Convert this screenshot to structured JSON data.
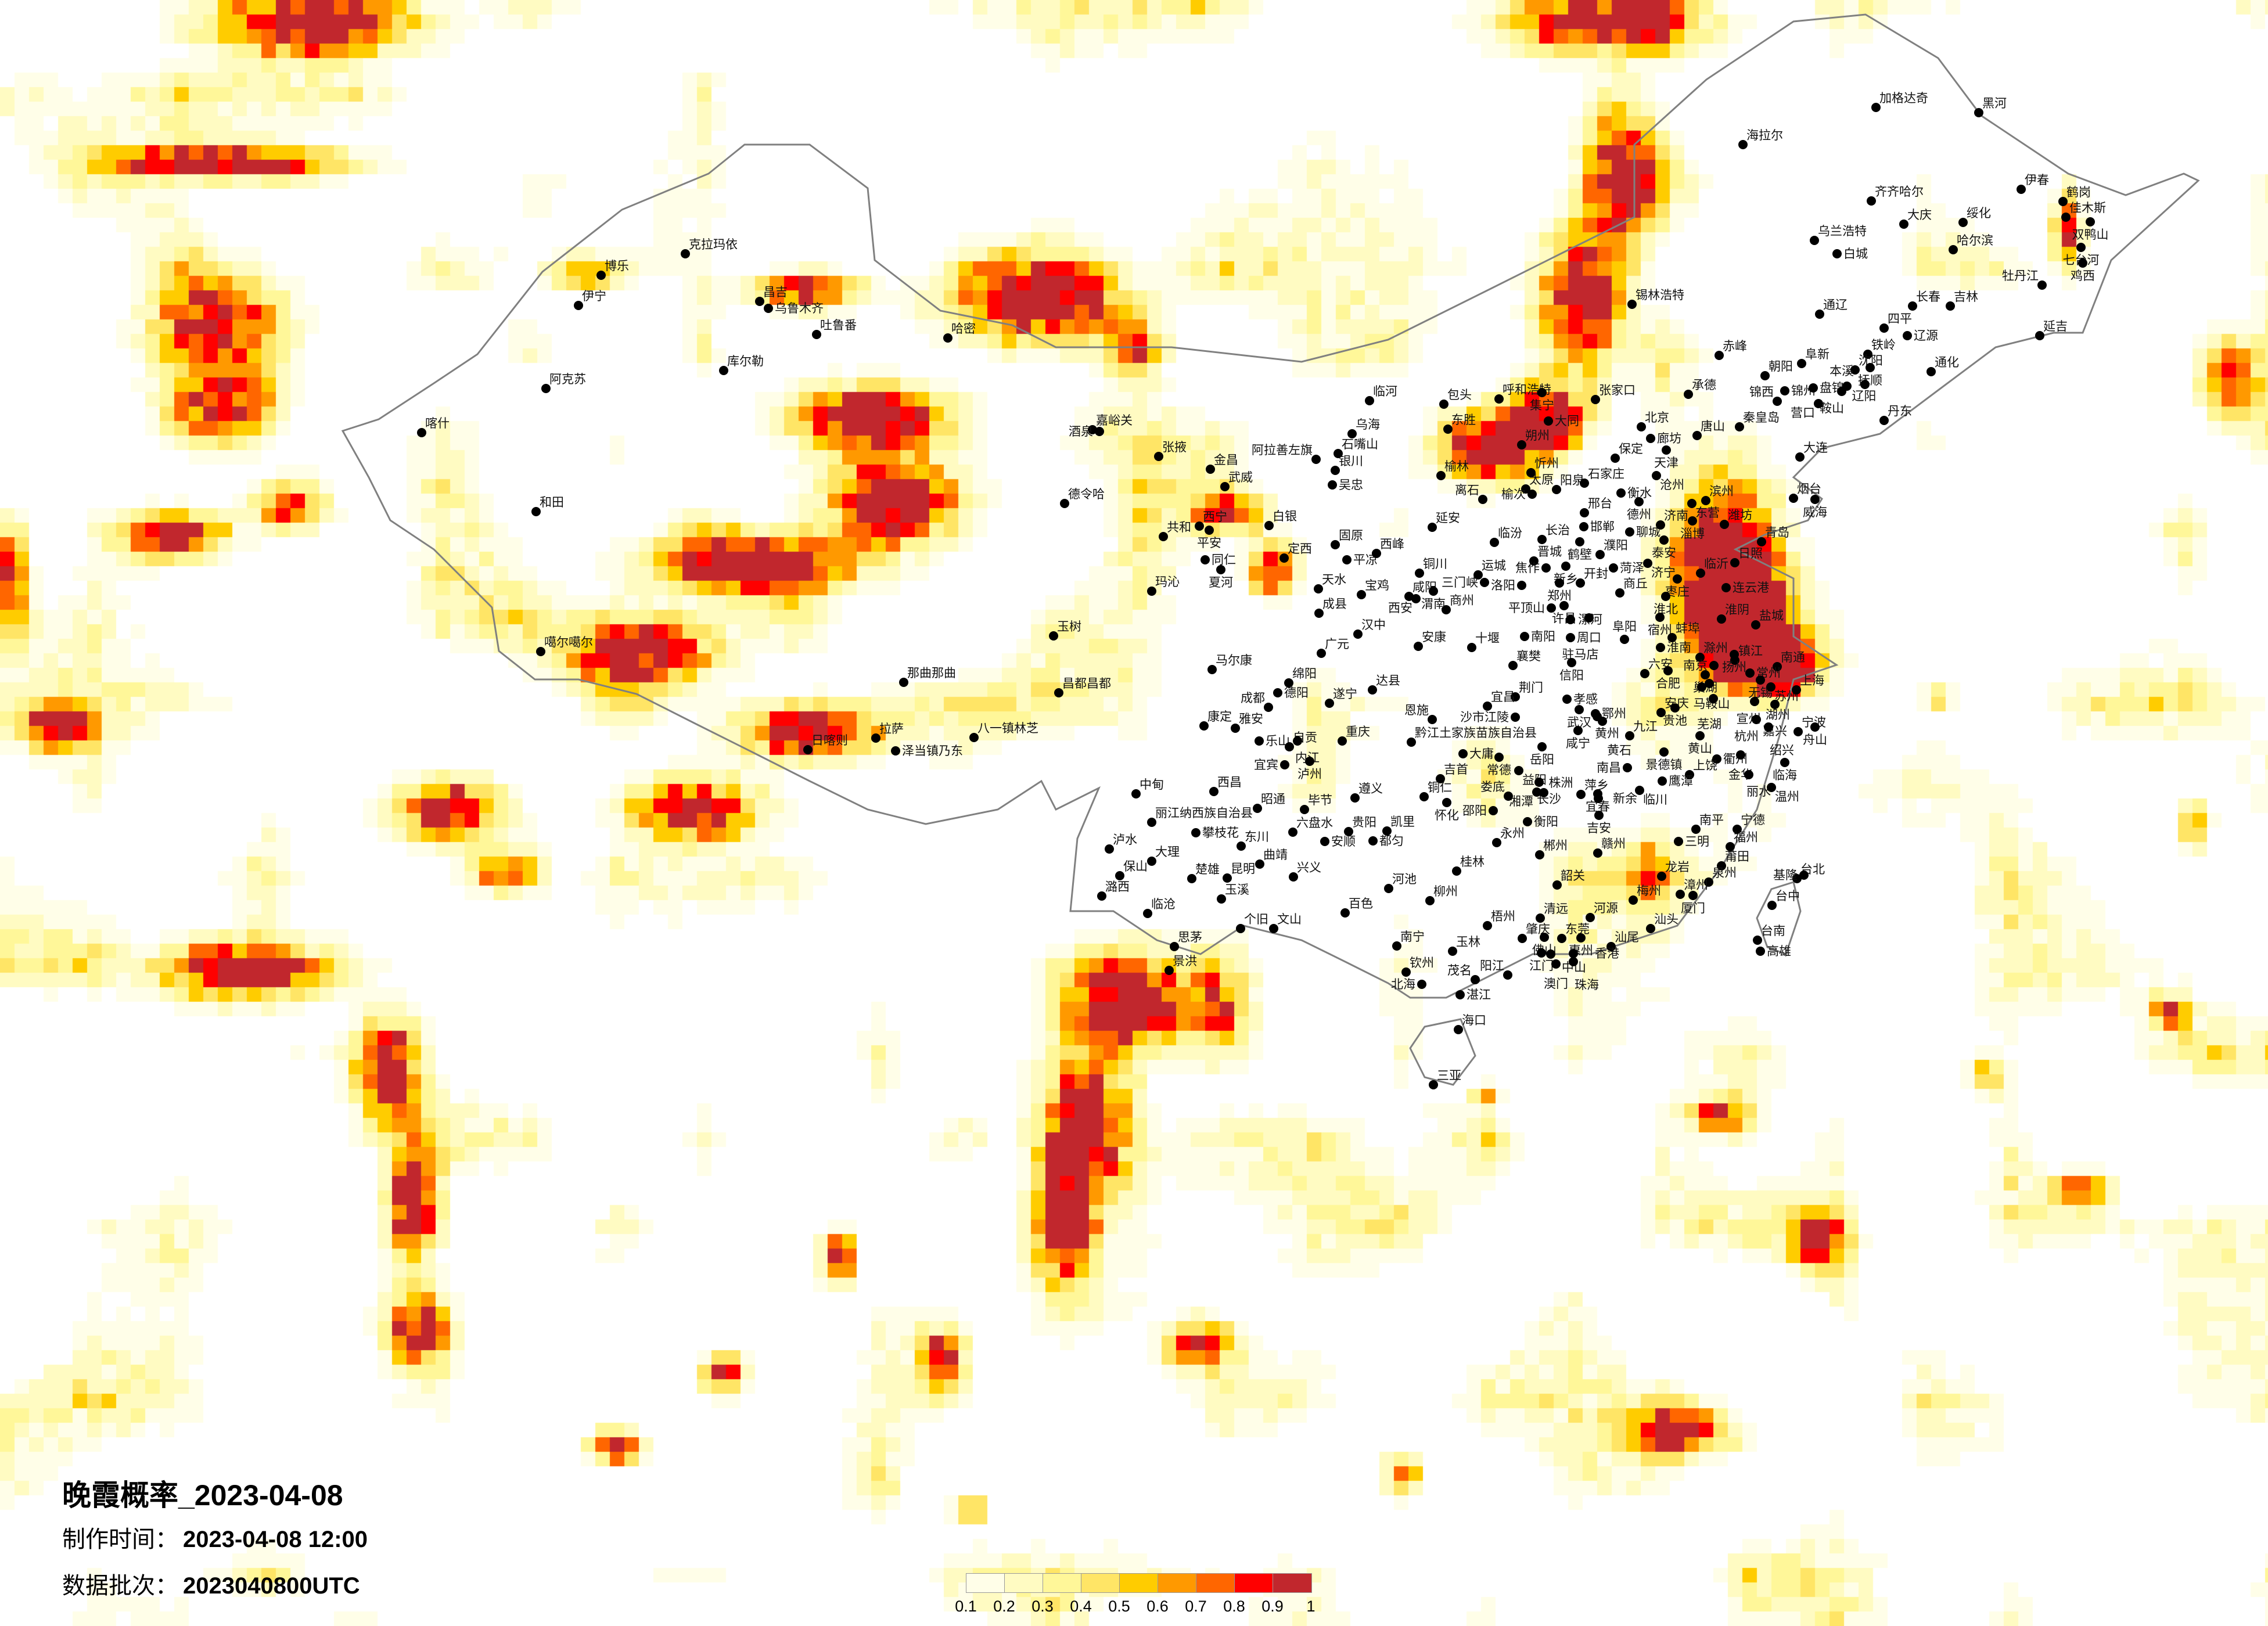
{
  "title": "晚霞概率_2023-04-08",
  "info": {
    "made_label": "制作时间：",
    "made_value": "2023-04-08 12:00",
    "batch_label": "数据批次：",
    "batch_value": "2023040800UTC"
  },
  "legend": {
    "colors": [
      "#FFFEE8",
      "#FFFBC2",
      "#FFF799",
      "#FFE566",
      "#FFCC00",
      "#FF9900",
      "#FF6600",
      "#FF0000",
      "#C1272D"
    ],
    "ticks": [
      "0.1",
      "0.2",
      "0.3",
      "0.4",
      "0.5",
      "0.6",
      "0.7",
      "0.8",
      "0.9",
      "1"
    ]
  },
  "map": {
    "border_color": "#808080",
    "marker_color": "#000000",
    "cities": [
      "喀什",
      "博乐",
      "伊宁",
      "克拉玛依",
      "昌吉",
      "乌鲁木齐",
      "吐鲁番",
      "哈密",
      "库尔勒",
      "阿克苏",
      "和田",
      "噶尔噶尔",
      "嘉峪关",
      "酒泉",
      "张掖",
      "金昌",
      "武威",
      "德令哈",
      "西宁",
      "平安",
      "共和",
      "同仁",
      "夏河",
      "玛沁",
      "玉树",
      "马尔康",
      "那曲那曲",
      "昌都昌都",
      "日喀则",
      "拉萨",
      "泽当镇乃东",
      "八一镇林芝",
      "康定",
      "白银",
      "加格达奇",
      "黑河",
      "海拉尔",
      "伊春",
      "鹤岗",
      "佳木斯",
      "双鸭山",
      "齐齐哈尔",
      "大庆",
      "绥化",
      "乌兰浩特",
      "白城",
      "哈尔滨",
      "七台河",
      "鸡西",
      "牡丹江",
      "锡林浩特",
      "长春",
      "吉林",
      "通辽",
      "四平",
      "辽源",
      "延吉",
      "赤峰",
      "铁岭",
      "阜新",
      "沈阳",
      "抚顺",
      "通化",
      "朝阳",
      "锦州",
      "盘锦",
      "辽阳",
      "鞍山",
      "本溪",
      "锦西",
      "营口",
      "张家口",
      "承德",
      "北京",
      "廊坊",
      "唐山",
      "秦皇岛",
      "天津",
      "保定",
      "丹东",
      "大连",
      "临河",
      "包头",
      "呼和浩特",
      "集宁",
      "乌海",
      "石嘴山",
      "阿拉善左旗",
      "银川",
      "吴忠",
      "东胜",
      "大同",
      "朔州",
      "忻州",
      "榆林",
      "太原",
      "榆次",
      "阳泉",
      "石家庄",
      "衡水",
      "离石",
      "德州",
      "沧州",
      "延安",
      "邢台",
      "邯郸",
      "聊城",
      "济南",
      "滨州",
      "东营",
      "淄博",
      "潍坊",
      "烟台",
      "威海",
      "青岛",
      "泰安",
      "固原",
      "定西",
      "平凉",
      "西峰",
      "临汾",
      "长治",
      "鹤壁",
      "濮阳",
      "晋城",
      "焦作",
      "新乡",
      "菏泽",
      "济宁",
      "临沂",
      "日照",
      "枣庄",
      "连云港",
      "铜川",
      "运城",
      "三门峡",
      "洛阳",
      "郑州",
      "开封",
      "商丘",
      "天水",
      "宝鸡",
      "咸阳",
      "渭南",
      "西安",
      "淮北",
      "宿州",
      "商州",
      "许昌",
      "平顶山",
      "漯河",
      "周口",
      "成县",
      "淮阴",
      "盐城",
      "汉中",
      "南阳",
      "驻马店",
      "阜阳",
      "蚌埠",
      "淮南",
      "安康",
      "十堰",
      "广元",
      "信阳",
      "襄樊",
      "滁州",
      "镇江",
      "扬州",
      "南京",
      "六安",
      "合肥",
      "巢湖",
      "南通",
      "常州",
      "无锡",
      "苏州",
      "上海",
      "马鞍山",
      "芜湖",
      "宣州",
      "湖州",
      "嘉兴",
      "达县",
      "荆门",
      "孝感",
      "宜昌",
      "武汉",
      "鄂州",
      "黄州",
      "黄石",
      "沙市江陵",
      "恩施",
      "安庆",
      "贵池",
      "杭州",
      "绍兴",
      "宁波",
      "舟山",
      "咸宁",
      "九江",
      "黄山",
      "重庆",
      "黔江土家族苗族自治县",
      "岳阳",
      "景德镇",
      "衢州",
      "金华",
      "大庸",
      "常德",
      "临海",
      "益阳",
      "南昌",
      "上饶",
      "鹰潭",
      "丽水",
      "吉首",
      "长沙",
      "湘潭",
      "株洲",
      "萍乡",
      "宜春",
      "新余",
      "娄底",
      "临川",
      "温州",
      "遵义",
      "铜仁",
      "怀化",
      "邵阳",
      "吉安",
      "衡阳",
      "贵阳",
      "凯里",
      "都匀",
      "永州",
      "南平",
      "宁德",
      "三明",
      "福州",
      "赣州",
      "郴州",
      "莆田",
      "桂林",
      "龙岩",
      "泉州",
      "台北",
      "基隆",
      "河池",
      "韶关",
      "漳州",
      "厦门",
      "梅州",
      "柳州",
      "台中",
      "百色",
      "清远",
      "河源",
      "梧州",
      "汕头",
      "肇庆",
      "佛山",
      "东莞",
      "惠州",
      "台南",
      "高雄",
      "南宁",
      "玉林",
      "汕尾",
      "江门",
      "中山",
      "香港",
      "澳门",
      "珠海",
      "钦州",
      "阳江",
      "茂名",
      "北海",
      "湛江",
      "海口",
      "三亚",
      "绵阳",
      "德阳",
      "成都",
      "遂宁",
      "雅安",
      "乐山",
      "自贡",
      "内江",
      "宜宾",
      "泸州",
      "西昌",
      "中甸",
      "昭通",
      "毕节",
      "丽江纳西族自治县",
      "攀枝花",
      "六盘水",
      "安顺",
      "泸水",
      "东川",
      "大理",
      "曲靖",
      "保山",
      "楚雄",
      "昆明",
      "兴义",
      "潞西",
      "玉溪",
      "临沧",
      "个旧",
      "文山",
      "思茅",
      "景洪"
    ]
  }
}
